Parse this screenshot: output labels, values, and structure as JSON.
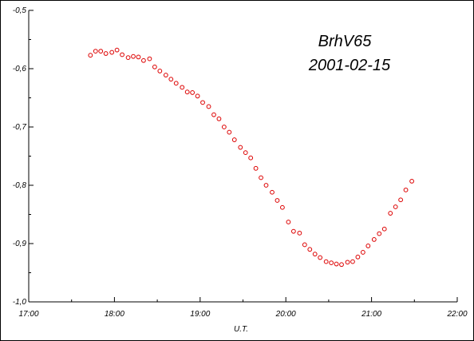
{
  "chart_data": {
    "type": "scatter",
    "title": "BrhV65",
    "subtitle": "2001-02-15",
    "xlabel": "U.T.",
    "ylabel": "",
    "xlim": [
      17.0,
      22.0
    ],
    "ylim": [
      -1.0,
      -0.5
    ],
    "x_ticks": [
      "17:00",
      "18:00",
      "19:00",
      "20:00",
      "21:00",
      "22:00"
    ],
    "x_tick_values": [
      17,
      18,
      19,
      20,
      21,
      22
    ],
    "y_ticks": [
      "-0,5",
      "-0,6",
      "-0,7",
      "-0,8",
      "-0,9",
      "-1,0"
    ],
    "y_tick_values": [
      -0.5,
      -0.6,
      -0.7,
      -0.8,
      -0.9,
      -1.0
    ],
    "marker_color": "#dd0000",
    "grid": false,
    "points": [
      [
        17.72,
        -0.577
      ],
      [
        17.78,
        -0.57
      ],
      [
        17.84,
        -0.57
      ],
      [
        17.9,
        -0.574
      ],
      [
        17.97,
        -0.572
      ],
      [
        18.03,
        -0.568
      ],
      [
        18.09,
        -0.576
      ],
      [
        18.16,
        -0.581
      ],
      [
        18.22,
        -0.579
      ],
      [
        18.28,
        -0.58
      ],
      [
        18.34,
        -0.586
      ],
      [
        18.41,
        -0.583
      ],
      [
        18.47,
        -0.597
      ],
      [
        18.53,
        -0.604
      ],
      [
        18.6,
        -0.611
      ],
      [
        18.66,
        -0.618
      ],
      [
        18.72,
        -0.625
      ],
      [
        18.79,
        -0.632
      ],
      [
        18.85,
        -0.64
      ],
      [
        18.91,
        -0.641
      ],
      [
        18.97,
        -0.647
      ],
      [
        19.03,
        -0.658
      ],
      [
        19.1,
        -0.665
      ],
      [
        19.16,
        -0.679
      ],
      [
        19.22,
        -0.686
      ],
      [
        19.28,
        -0.7
      ],
      [
        19.34,
        -0.709
      ],
      [
        19.4,
        -0.722
      ],
      [
        19.47,
        -0.735
      ],
      [
        19.53,
        -0.744
      ],
      [
        19.59,
        -0.753
      ],
      [
        19.65,
        -0.771
      ],
      [
        19.71,
        -0.787
      ],
      [
        19.77,
        -0.8
      ],
      [
        19.84,
        -0.812
      ],
      [
        19.9,
        -0.826
      ],
      [
        19.96,
        -0.838
      ],
      [
        20.03,
        -0.863
      ],
      [
        20.09,
        -0.879
      ],
      [
        20.16,
        -0.882
      ],
      [
        20.22,
        -0.902
      ],
      [
        20.28,
        -0.91
      ],
      [
        20.34,
        -0.918
      ],
      [
        20.4,
        -0.924
      ],
      [
        20.47,
        -0.931
      ],
      [
        20.53,
        -0.933
      ],
      [
        20.59,
        -0.935
      ],
      [
        20.65,
        -0.936
      ],
      [
        20.72,
        -0.932
      ],
      [
        20.78,
        -0.931
      ],
      [
        20.84,
        -0.923
      ],
      [
        20.9,
        -0.915
      ],
      [
        20.96,
        -0.904
      ],
      [
        21.03,
        -0.893
      ],
      [
        21.09,
        -0.883
      ],
      [
        21.15,
        -0.875
      ],
      [
        21.22,
        -0.848
      ],
      [
        21.28,
        -0.837
      ],
      [
        21.34,
        -0.825
      ],
      [
        21.4,
        -0.808
      ],
      [
        21.47,
        -0.793
      ]
    ]
  }
}
